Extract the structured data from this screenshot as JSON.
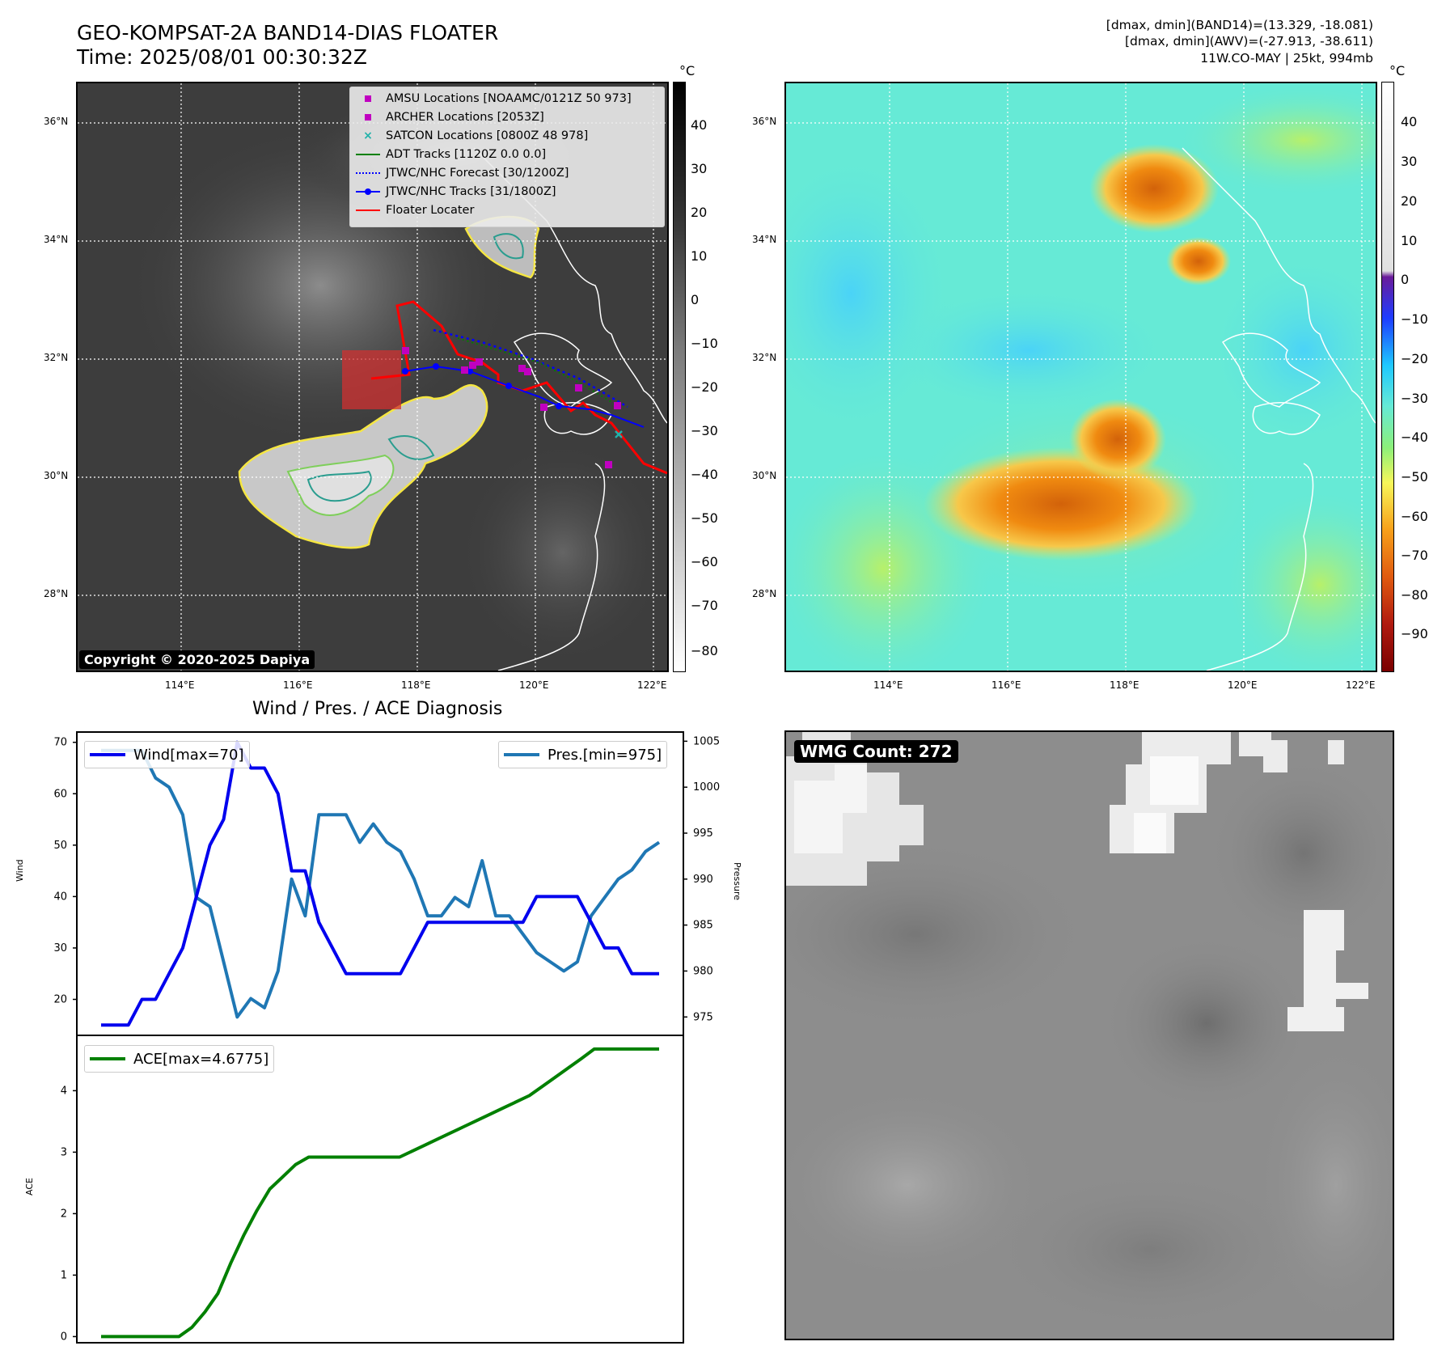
{
  "header": {
    "title_line1": "GEO-KOMPSAT-2A BAND14-DIAS FLOATER",
    "title_line2": "Time: 2025/08/01 00:30:32Z",
    "info_line1": "[dmax, dmin](BAND14)=(13.329, -18.081)",
    "info_line2": "[dmax, dmin](AWV)=(-27.913, -38.611)",
    "info_line3": "11W.CO-MAY | 25kt, 994mb"
  },
  "map": {
    "lat_labels": [
      "36°N",
      "34°N",
      "32°N",
      "30°N",
      "28°N"
    ],
    "lon_labels": [
      "114°E",
      "116°E",
      "118°E",
      "120°E",
      "122°E"
    ],
    "copyright": "Copyright © 2020-2025 Dapiya",
    "legend": [
      {
        "label": "AMSU Locations [NOAAMC/0121Z 50 973]",
        "marker": "square",
        "color": "#c000c0"
      },
      {
        "label": "ARCHER Locations [2053Z]",
        "marker": "square",
        "color": "#c000c0"
      },
      {
        "label": "SATCON Locations [0800Z 48 978]",
        "marker": "x",
        "color": "#20b2aa"
      },
      {
        "label": "ADT Tracks [1120Z 0.0 0.0]",
        "marker": "line",
        "color": "#008000"
      },
      {
        "label": "JTWC/NHC Forecast [30/1200Z]",
        "marker": "dotted",
        "color": "#0000ff"
      },
      {
        "label": "JTWC/NHC Tracks [31/1800Z]",
        "marker": "line-dot",
        "color": "#0000ff"
      },
      {
        "label": "Floater Locater",
        "marker": "line",
        "color": "#ff0000"
      }
    ]
  },
  "colorbar_left": {
    "unit": "°C",
    "ticks": [
      "40",
      "30",
      "20",
      "10",
      "0",
      "−10",
      "−20",
      "−30",
      "−40",
      "−50",
      "−60",
      "−70",
      "−80"
    ]
  },
  "colorbar_right": {
    "unit": "°C",
    "ticks": [
      "40",
      "30",
      "20",
      "10",
      "0",
      "−10",
      "−20",
      "−30",
      "−40",
      "−50",
      "−60",
      "−70",
      "−80",
      "−90"
    ]
  },
  "diag_title": "Wind / Pres. / ACE Diagnosis",
  "wmg": {
    "label": "WMG Count: 272"
  },
  "chart_data": [
    {
      "type": "line",
      "title": "Wind / Pres. / ACE Diagnosis",
      "ylabel": "Wind",
      "ylabel_right": "Pressure",
      "ylim": [
        13,
        72
      ],
      "ylim_right": [
        973,
        1006
      ],
      "yticks": [
        20,
        30,
        40,
        50,
        60,
        70
      ],
      "yticks_right": [
        975,
        980,
        985,
        990,
        995,
        1000,
        1005
      ],
      "series": [
        {
          "name": "Wind[max=70]",
          "color": "#0000ee",
          "axis": "left",
          "values": [
            15,
            15,
            15,
            20,
            20,
            25,
            30,
            40,
            50,
            55,
            70,
            65,
            65,
            60,
            45,
            45,
            35,
            30,
            25,
            25,
            25,
            25,
            25,
            30,
            35,
            35,
            35,
            35,
            35,
            35,
            35,
            35,
            40,
            40,
            40,
            40,
            35,
            30,
            30,
            25,
            25,
            25
          ]
        },
        {
          "name": "Pres.[min=975]",
          "color": "#1f77b4",
          "axis": "right",
          "values": [
            1004,
            1004,
            1004,
            1004,
            1001,
            1000,
            997,
            988,
            987,
            981,
            975,
            977,
            976,
            980,
            990,
            986,
            997,
            997,
            997,
            994,
            996,
            994,
            993,
            990,
            986,
            986,
            988,
            987,
            992,
            986,
            986,
            984,
            982,
            981,
            980,
            981,
            986,
            988,
            990,
            991,
            993,
            994
          ]
        }
      ]
    },
    {
      "type": "line",
      "ylabel": "ACE",
      "ylim": [
        -0.1,
        4.9
      ],
      "yticks": [
        0,
        1,
        2,
        3,
        4
      ],
      "series": [
        {
          "name": "ACE[max=4.6775]",
          "color": "#008000",
          "values": [
            0,
            0,
            0,
            0,
            0,
            0,
            0,
            0.15,
            0.4,
            0.7,
            1.2,
            1.65,
            2.05,
            2.4,
            2.6,
            2.8,
            2.92,
            2.92,
            2.92,
            2.92,
            2.92,
            2.92,
            2.92,
            2.92,
            3.02,
            3.12,
            3.22,
            3.32,
            3.42,
            3.52,
            3.62,
            3.72,
            3.82,
            3.92,
            4.07,
            4.22,
            4.37,
            4.52,
            4.6775,
            4.6775,
            4.6775,
            4.6775,
            4.6775,
            4.6775
          ]
        }
      ]
    }
  ]
}
